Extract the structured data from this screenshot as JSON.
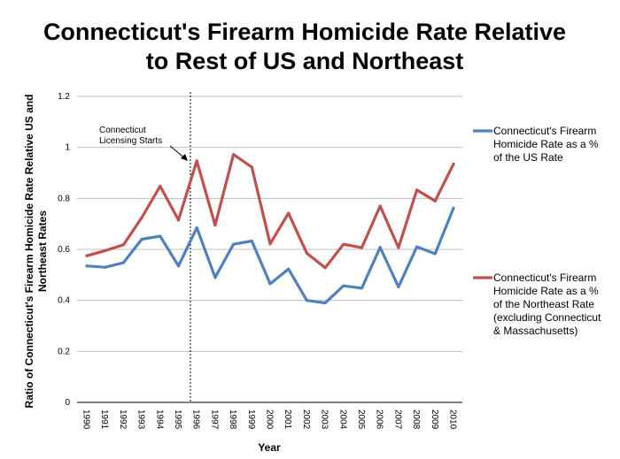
{
  "chart_data": {
    "type": "line",
    "title_lines": [
      "Connecticut's Firearm Homicide Rate Relative",
      "to Rest of US and Northeast"
    ],
    "xlabel": "Year",
    "ylabel_lines": [
      "Ratio of Connecticut's Firearm Homicide Rate Relative US and",
      "Northeast Rates"
    ],
    "categories": [
      "1990",
      "1991",
      "1992",
      "1993",
      "1994",
      "1995",
      "1996",
      "1997",
      "1998",
      "1999",
      "2000",
      "2001",
      "2002",
      "2003",
      "2004",
      "2005",
      "2006",
      "2007",
      "2008",
      "2009",
      "2010"
    ],
    "ylim": [
      0,
      1.2
    ],
    "yticks": [
      "0",
      "0.2",
      "0.4",
      "0.6",
      "0.8",
      "1",
      "1.2"
    ],
    "grid": true,
    "legend_position": "right",
    "series": [
      {
        "name_lines": [
          "Connecticut's Firearm",
          "Homicide Rate as a %",
          "of the US Rate"
        ],
        "color": "#4f81bd",
        "values": [
          0.535,
          0.53,
          0.548,
          0.64,
          0.652,
          0.535,
          0.685,
          0.49,
          0.62,
          0.633,
          0.465,
          0.523,
          0.4,
          0.39,
          0.457,
          0.448,
          0.608,
          0.453,
          0.61,
          0.583,
          0.762
        ]
      },
      {
        "name_lines": [
          "Connecticut's Firearm",
          "Homicide Rate as a %",
          "of the Northeast Rate",
          "(excluding Connecticut",
          "& Massachusetts)"
        ],
        "color": "#c0504d",
        "values": [
          0.575,
          0.595,
          0.618,
          0.725,
          0.848,
          0.715,
          0.947,
          0.695,
          0.972,
          0.923,
          0.622,
          0.742,
          0.585,
          0.528,
          0.62,
          0.607,
          0.77,
          0.607,
          0.833,
          0.79,
          0.935
        ]
      }
    ],
    "annotation": {
      "text_lines": [
        "Connecticut",
        "Licensing Starts"
      ],
      "marker_year": "1996"
    }
  }
}
